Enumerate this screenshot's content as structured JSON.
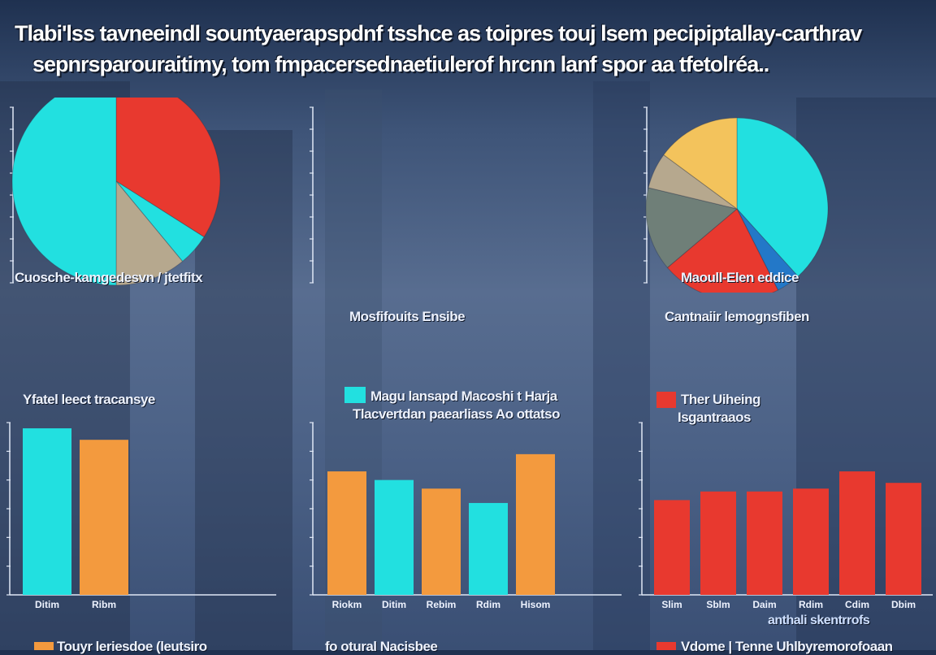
{
  "page": {
    "title_line1": "Tlabi'lss tavneeindl sountyaerapspdnf tsshce as toipres touj lsem pecipiptallay-carthrav",
    "title_line2": "sepnrsparouraitimy, tom fmpacersednaetiulerof hrcnn lanf spor aa tfetolréa.."
  },
  "colors": {
    "cyan": "#22e0e0",
    "orange": "#f39a3e",
    "red": "#e8392f",
    "tan": "#b6a88e",
    "yellow": "#f3c35c",
    "slate": "#6f7f78",
    "blue": "#2378c8",
    "axis": "#dfe7f5"
  },
  "captions": {
    "pie1": "Cuosche-kamgedesvn / jtetfitx",
    "pie2": "Mosfifouits Ensibe",
    "pie3_label": "Maoull-Elen eddice",
    "pie3_legend": "Cantnaiir lemognsfiben",
    "bar1_legend": "Yfatel leect tracansye",
    "bar2_legend1": "Magu lansapd Macoshi t Harja",
    "bar2_legend2": "Tlacvertdan paearliass   Ao ottatso",
    "bar3_legend1": "Ther Uiheing",
    "bar3_legend2": "Isgantraaos",
    "footer_right": "anthali skentrrofs",
    "bottom1": "Touyr leriesdoe (leutsiro",
    "bottom2": "fo otural Nacisbee",
    "bottom3": "Vdome | Tenne Uhlbyremorofoaan"
  },
  "chart_data": [
    {
      "type": "pie",
      "slices": [
        {
          "value": 34,
          "color": "#e8392f"
        },
        {
          "value": 5,
          "color": "#22e0e0"
        },
        {
          "value": 11,
          "color": "#b6a88e"
        },
        {
          "value": 50,
          "color": "#22e0e0"
        }
      ]
    },
    {
      "type": "pie",
      "slices": [
        {
          "value": 36,
          "color": "#22e0e0"
        },
        {
          "value": 4,
          "color": "#2378c8"
        },
        {
          "value": 20,
          "color": "#e8392f"
        },
        {
          "value": 14,
          "color": "#6f7f78"
        },
        {
          "value": 6,
          "color": "#b6a88e"
        },
        {
          "value": 14,
          "color": "#f3c35c"
        }
      ]
    },
    {
      "type": "bar",
      "categories": [
        "Ditim",
        "Ribm"
      ],
      "values": [
        58,
        54
      ],
      "colors": [
        "#22e0e0",
        "#f39a3e"
      ],
      "ylim": [
        0,
        60
      ]
    },
    {
      "type": "bar",
      "categories": [
        "Riokm",
        "Ditim",
        "Rebim",
        "Rdim",
        "Hisom"
      ],
      "values": [
        43,
        40,
        37,
        32,
        49
      ],
      "colors": [
        "#f39a3e",
        "#22e0e0",
        "#f39a3e",
        "#22e0e0",
        "#f39a3e"
      ],
      "ylim": [
        0,
        60
      ]
    },
    {
      "type": "bar",
      "categories": [
        "Slim",
        "Sblm",
        "Daim",
        "Rdim",
        "Cdim",
        "Dbim"
      ],
      "values": [
        33,
        36,
        36,
        37,
        43,
        39
      ],
      "colors": [
        "#e8392f",
        "#e8392f",
        "#e8392f",
        "#e8392f",
        "#e8392f",
        "#e8392f"
      ],
      "ylim": [
        0,
        60
      ]
    }
  ]
}
